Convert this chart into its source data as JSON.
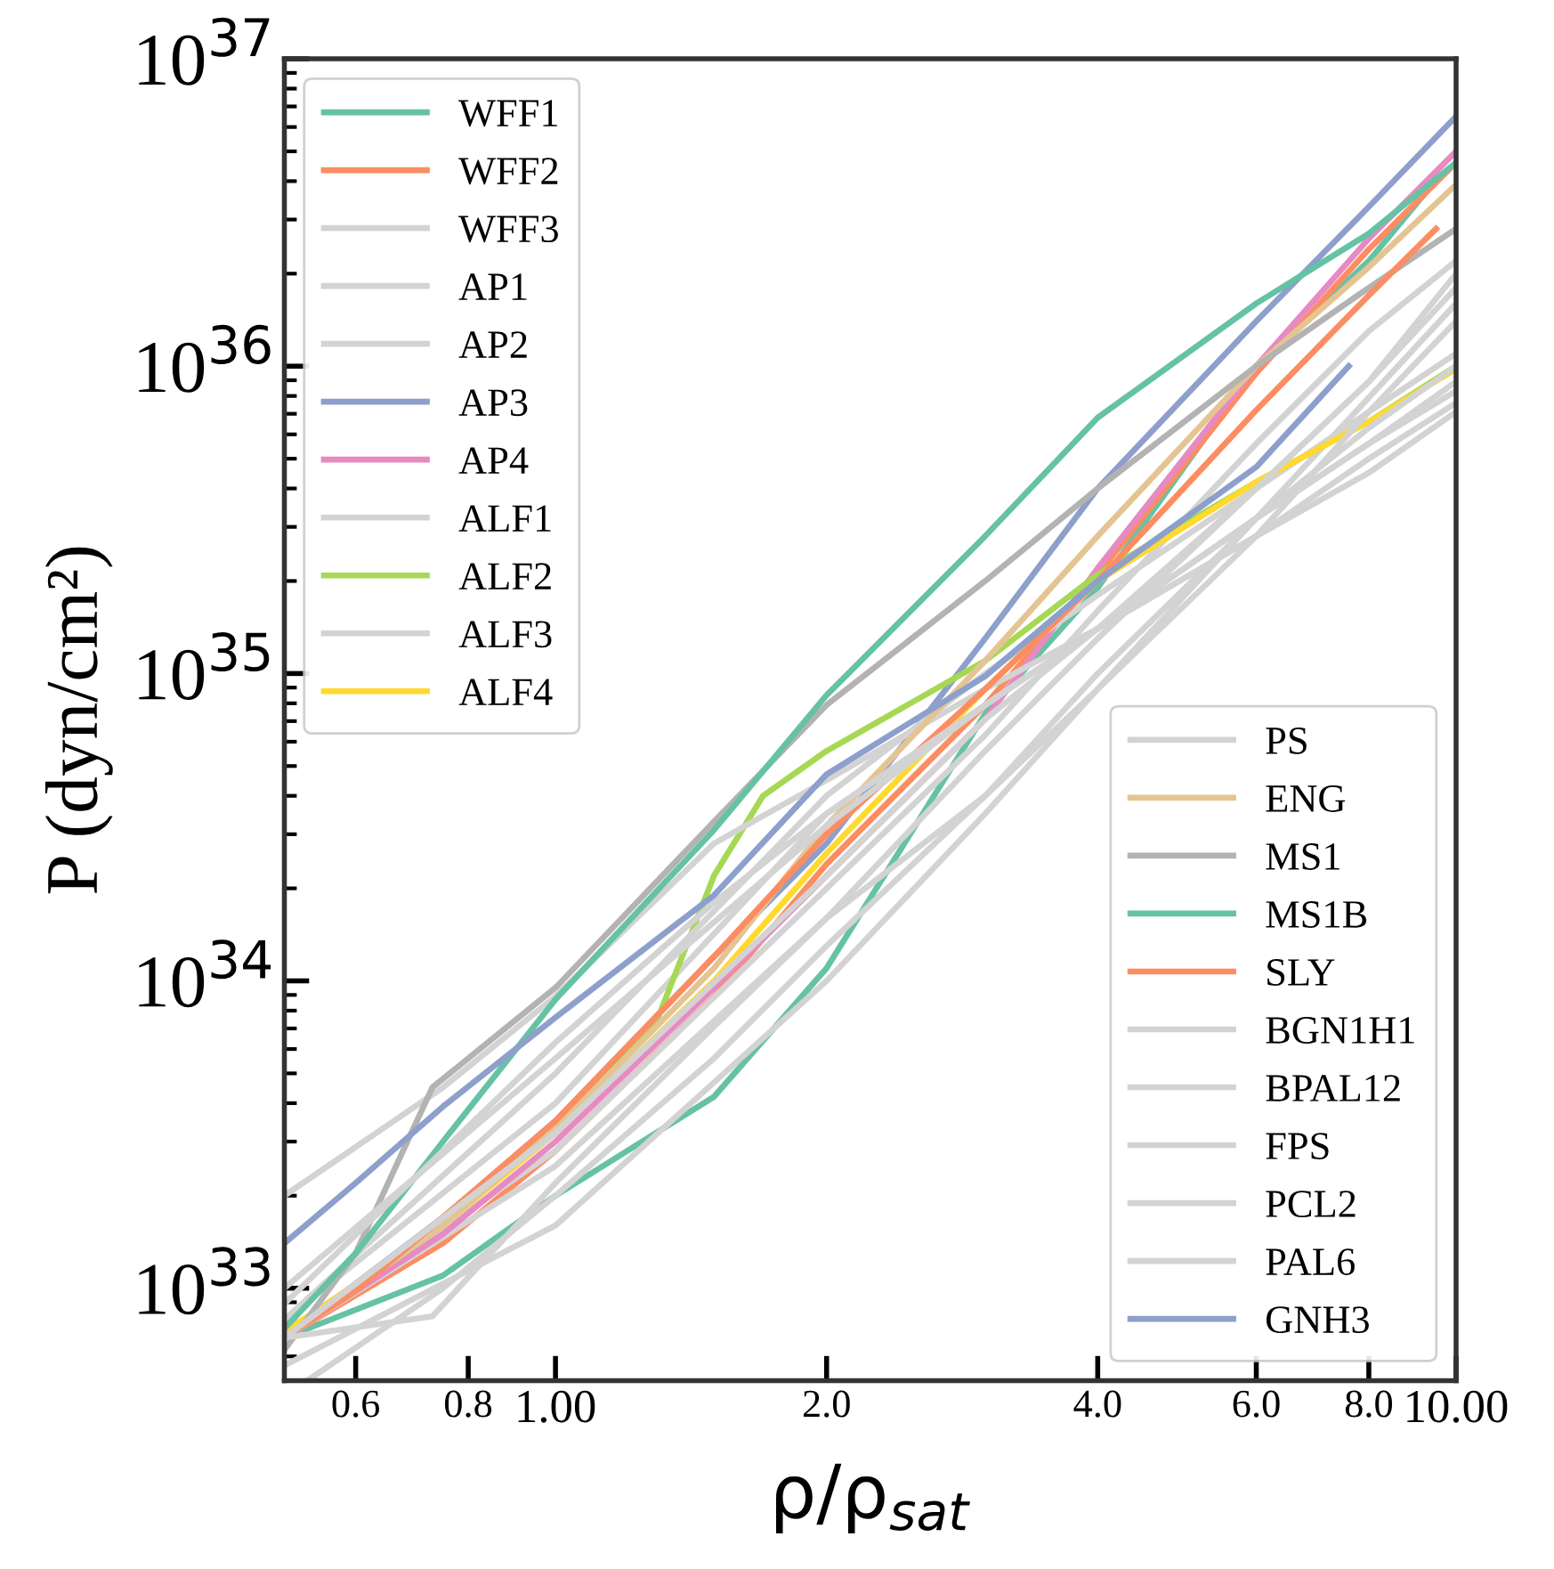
{
  "chart_data": {
    "type": "line",
    "xlabel": "ρ/ρ$_{sat}$",
    "ylabel": "P (dyn/cm²)",
    "log": "xy",
    "grid": false,
    "legend": "top left",
    "xlim": [
      0.5,
      10
    ],
    "ylim": [
      5e+32,
      1e+37
    ],
    "xticks": [
      {
        "value": 0.6,
        "label": "0.6"
      },
      {
        "value": 0.8,
        "label": "0.8"
      },
      {
        "value": 1,
        "label": "1.00"
      },
      {
        "value": 2,
        "label": "2.0"
      },
      {
        "value": 4,
        "label": "4.0"
      },
      {
        "value": 6,
        "label": "6.0"
      },
      {
        "value": 8,
        "label": "8.0"
      },
      {
        "value": 10,
        "label": "10.00"
      }
    ],
    "yticks": [
      {
        "value": 1e+33,
        "label": "10$^{33}$"
      },
      {
        "value": 1e+34,
        "label": "10$^{34}$"
      },
      {
        "value": 1e+35,
        "label": "10$^{35}$"
      },
      {
        "value": 1e+36,
        "label": "10$^{36}$"
      },
      {
        "value": 1e+37,
        "label": "10$^{37}$"
      }
    ],
    "series": [
      {
        "name": "WFF1",
        "color": "#66c2a5",
        "x": [
          0.5,
          0.75,
          1,
          1.5,
          2,
          3,
          4,
          6,
          8,
          9.2
        ],
        "values": [
          6.9e+32,
          1.1e+33,
          2e+33,
          4.2e+33,
          1.1e+34,
          7.4e+34,
          1.9e+35,
          1e+36,
          2.2e+36,
          3.6e+36
        ]
      },
      {
        "name": "WFF2",
        "color": "#fc8d62",
        "x": [
          0.5,
          0.75,
          1,
          1.5,
          2,
          3,
          4,
          6,
          8,
          10
        ],
        "values": [
          6.9e+32,
          1.4e+33,
          2.8e+33,
          8.9e+33,
          2.4e+34,
          7.9e+34,
          2.1e+35,
          9.5e+35,
          2.4e+36,
          4.6e+36
        ]
      },
      {
        "name": "WFF3",
        "color": "#d3d3d3",
        "x": [
          0.5,
          1,
          2,
          3,
          4,
          6,
          8,
          10
        ],
        "values": [
          6.9e+32,
          2.8e+33,
          2e+34,
          6.3e+34,
          1.6e+35,
          5.6e+35,
          1.3e+36,
          2.2e+36
        ]
      },
      {
        "name": "AP1",
        "color": "#d3d3d3",
        "x": [
          0.5,
          1,
          2,
          3,
          4,
          6,
          8,
          10
        ],
        "values": [
          5.6e+32,
          1.6e+33,
          1e+34,
          3.5e+34,
          8.9e+34,
          3.2e+35,
          7.9e+35,
          1.6e+36
        ]
      },
      {
        "name": "AP2",
        "color": "#d3d3d3",
        "x": [
          0.5,
          1,
          2,
          3,
          4,
          6,
          8,
          10
        ],
        "values": [
          6.9e+32,
          2.5e+33,
          1.6e+34,
          5.6e+34,
          1.3e+35,
          4e+35,
          8.9e+35,
          1.8e+36
        ]
      },
      {
        "name": "AP3",
        "color": "#8da0cb",
        "x": [
          0.5,
          0.75,
          1,
          1.5,
          2,
          3,
          4,
          6,
          8,
          10
        ],
        "values": [
          6.9e+32,
          1.7e+33,
          3.5e+33,
          1.2e+34,
          2.8e+34,
          1.3e+35,
          4e+35,
          1.4e+36,
          3.3e+36,
          6.5e+36
        ]
      },
      {
        "name": "AP4",
        "color": "#e78ac3",
        "x": [
          0.5,
          0.75,
          1,
          1.5,
          2,
          3,
          4,
          6,
          8,
          10
        ],
        "values": [
          6.9e+32,
          1.5e+33,
          3e+33,
          9.5e+33,
          2.2e+34,
          7.1e+34,
          2.2e+35,
          1e+36,
          2.6e+36,
          5e+36
        ]
      },
      {
        "name": "ALF1",
        "color": "#d3d3d3",
        "x": [
          0.5,
          1,
          2,
          3,
          4,
          6,
          8,
          10
        ],
        "values": [
          7.9e+32,
          4e+33,
          3.5e+34,
          7.9e+34,
          1.4e+35,
          3.2e+35,
          5.6e+35,
          8.9e+35
        ]
      },
      {
        "name": "ALF2",
        "color": "#a6d854",
        "x": [
          0.5,
          0.75,
          1,
          1.3,
          1.5,
          1.7,
          2,
          3,
          4,
          6,
          8,
          10
        ],
        "values": [
          6.9e+32,
          1.6e+33,
          3.3e+33,
          7.6e+33,
          2.2e+34,
          4e+34,
          5.6e+34,
          1.1e+35,
          2.1e+35,
          4.2e+35,
          6.6e+35,
          1e+36
        ]
      },
      {
        "name": "ALF3",
        "color": "#d3d3d3",
        "x": [
          0.5,
          1,
          2,
          3,
          4,
          6,
          8,
          10
        ],
        "values": [
          7.9e+32,
          5e+33,
          4e+34,
          1e+35,
          1.8e+35,
          4e+35,
          7.1e+35,
          1.1e+36
        ]
      },
      {
        "name": "ALF4",
        "color": "#ffd92f",
        "x": [
          0.5,
          0.75,
          1,
          1.5,
          2,
          3,
          4,
          6,
          8,
          10
        ],
        "values": [
          7.2e+32,
          1.6e+33,
          3.2e+33,
          1e+34,
          2.6e+34,
          8.9e+34,
          2e+35,
          4.2e+35,
          6.6e+35,
          9.8e+35
        ]
      },
      {
        "name": "PS",
        "color": "#d3d3d3",
        "x": [
          0.5,
          0.75,
          1,
          1.5,
          2,
          3,
          4,
          6,
          8,
          10
        ],
        "values": [
          2e+33,
          4.5e+33,
          8.9e+33,
          2.8e+34,
          4.5e+34,
          8.9e+34,
          1.4e+35,
          2.8e+35,
          4.5e+35,
          7.1e+35
        ]
      },
      {
        "name": "ENG",
        "color": "#e5c494",
        "x": [
          0.5,
          0.75,
          1,
          1.5,
          2,
          3,
          4,
          6,
          8,
          10
        ],
        "values": [
          6.9e+32,
          1.6e+33,
          3.3e+33,
          1.1e+34,
          3.2e+34,
          1.1e+35,
          2.8e+35,
          1e+36,
          2.1e+36,
          3.9e+36
        ]
      },
      {
        "name": "MS1",
        "color": "#b3b3b3",
        "x": [
          0.5,
          0.6,
          0.73,
          1,
          1.5,
          2,
          3,
          4,
          6,
          8,
          10
        ],
        "values": [
          6.3e+32,
          1.3e+33,
          4.5e+33,
          9.5e+33,
          3.3e+34,
          7.9e+34,
          2e+35,
          4e+35,
          1e+36,
          1.8e+36,
          2.8e+36
        ]
      },
      {
        "name": "MS1B",
        "color": "#66c2a5",
        "x": [
          0.5,
          0.6,
          0.75,
          1,
          1.5,
          2,
          3,
          4,
          6,
          8,
          10
        ],
        "values": [
          7.4e+32,
          1.3e+33,
          3e+33,
          8.7e+33,
          3.1e+34,
          8.5e+34,
          2.8e+35,
          6.8e+35,
          1.6e+36,
          2.7e+36,
          4.6e+36
        ]
      },
      {
        "name": "SLY",
        "color": "#fc8d62",
        "x": [
          0.5,
          0.6,
          0.75,
          1,
          1.5,
          2,
          3,
          4,
          6,
          8,
          9.5
        ],
        "values": [
          6.9e+32,
          9.8e+32,
          1.7e+33,
          3.5e+33,
          1.2e+34,
          3e+34,
          8.9e+34,
          2e+35,
          7.2e+35,
          1.7e+36,
          2.8e+36
        ]
      },
      {
        "name": "BGN1H1",
        "color": "#d3d3d3",
        "x": [
          0.5,
          0.75,
          1,
          1.5,
          2,
          3,
          4,
          6,
          8,
          10
        ],
        "values": [
          8.9e+32,
          2.8e+33,
          6.3e+33,
          1.8e+34,
          3.5e+34,
          7.9e+34,
          1.4e+35,
          3.2e+35,
          5.6e+35,
          8.3e+35
        ]
      },
      {
        "name": "BPAL12",
        "color": "#d3d3d3",
        "x": [
          0.53,
          0.75,
          1,
          1.5,
          2,
          3,
          4,
          6,
          8,
          10
        ],
        "values": [
          5e+32,
          1e+33,
          2e+33,
          5.6e+33,
          1.3e+34,
          4e+34,
          1e+35,
          3.2e+35,
          6.3e+35,
          1e+36
        ]
      },
      {
        "name": "FPS",
        "color": "#d3d3d3",
        "x": [
          0.5,
          0.73,
          1,
          1.5,
          2,
          3,
          4,
          6,
          8,
          10
        ],
        "values": [
          6.9e+32,
          8.1e+32,
          2.2e+33,
          7.1e+33,
          1.6e+34,
          4e+34,
          8.9e+34,
          2.8e+35,
          7.1e+35,
          1.4e+36
        ]
      },
      {
        "name": "PCL2",
        "color": "#d3d3d3",
        "x": [
          0.5,
          1,
          2,
          3,
          4,
          6,
          8,
          10
        ],
        "values": [
          1e+33,
          5.6e+33,
          3.2e+34,
          7.9e+34,
          1.4e+35,
          2.8e+35,
          5e+35,
          7.6e+35
        ]
      },
      {
        "name": "PAL6",
        "color": "#d3d3d3",
        "x": [
          0.5,
          1,
          2,
          3,
          4,
          6,
          8,
          10
        ],
        "values": [
          6.9e+32,
          3.2e+33,
          2.2e+34,
          7.1e+34,
          1.4e+35,
          4e+35,
          8.9e+35,
          2e+36
        ]
      },
      {
        "name": "GNH3",
        "color": "#8da0cb",
        "x": [
          0.5,
          0.6,
          0.75,
          1,
          1.5,
          2,
          3,
          4,
          6,
          7.6
        ],
        "values": [
          1.4e+33,
          2.2e+33,
          3.9e+33,
          7.6e+33,
          1.9e+34,
          4.7e+34,
          9.8e+34,
          2e+35,
          4.7e+35,
          1e+36
        ]
      }
    ]
  }
}
